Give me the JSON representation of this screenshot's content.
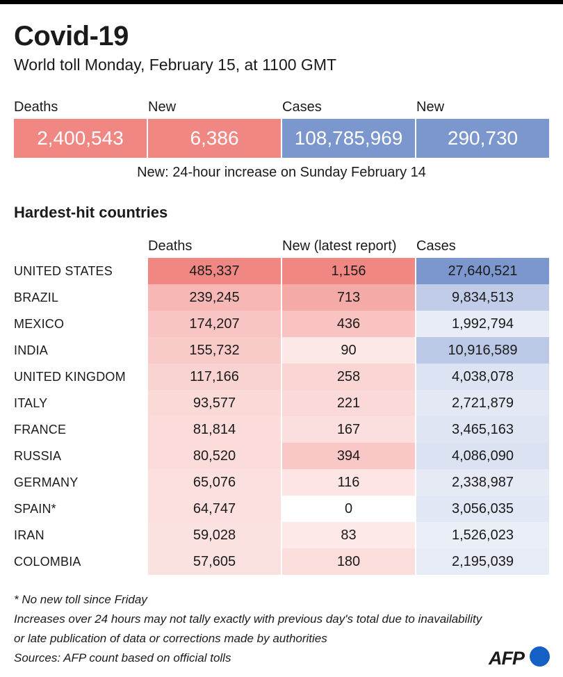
{
  "header": {
    "title": "Covid-19",
    "subtitle": "World toll Monday, February 15, at 1100 GMT"
  },
  "summary": {
    "deaths_label": "Deaths",
    "new_deaths_label": "New",
    "cases_label": "Cases",
    "new_cases_label": "New",
    "deaths_value": "2,400,543",
    "new_deaths_value": "6,386",
    "cases_value": "108,785,969",
    "new_cases_value": "290,730",
    "note": "New: 24-hour increase on Sunday February 14"
  },
  "colors": {
    "deaths_accent": "#f08783",
    "cases_accent": "#7c96ce"
  },
  "chart_data": {
    "type": "table",
    "title": "Hardest-hit countries",
    "columns": [
      "Deaths",
      "New (latest report)",
      "Cases"
    ],
    "rows": [
      {
        "country": "UNITED STATES",
        "deaths": 485337,
        "new": 1156,
        "cases": 27640521,
        "deaths_label": "485,337",
        "new_label": "1,156",
        "cases_label": "27,640,521"
      },
      {
        "country": "BRAZIL",
        "deaths": 239245,
        "new": 713,
        "cases": 9834513,
        "deaths_label": "239,245",
        "new_label": "713",
        "cases_label": "9,834,513"
      },
      {
        "country": "MEXICO",
        "deaths": 174207,
        "new": 436,
        "cases": 1992794,
        "deaths_label": "174,207",
        "new_label": "436",
        "cases_label": "1,992,794"
      },
      {
        "country": "INDIA",
        "deaths": 155732,
        "new": 90,
        "cases": 10916589,
        "deaths_label": "155,732",
        "new_label": "90",
        "cases_label": "10,916,589"
      },
      {
        "country": "UNITED KINGDOM",
        "deaths": 117166,
        "new": 258,
        "cases": 4038078,
        "deaths_label": "117,166",
        "new_label": "258",
        "cases_label": "4,038,078"
      },
      {
        "country": "ITALY",
        "deaths": 93577,
        "new": 221,
        "cases": 2721879,
        "deaths_label": "93,577",
        "new_label": "221",
        "cases_label": "2,721,879"
      },
      {
        "country": "FRANCE",
        "deaths": 81814,
        "new": 167,
        "cases": 3465163,
        "deaths_label": "81,814",
        "new_label": "167",
        "cases_label": "3,465,163"
      },
      {
        "country": "RUSSIA",
        "deaths": 80520,
        "new": 394,
        "cases": 4086090,
        "deaths_label": "80,520",
        "new_label": "394",
        "cases_label": "4,086,090"
      },
      {
        "country": "GERMANY",
        "deaths": 65076,
        "new": 116,
        "cases": 2338987,
        "deaths_label": "65,076",
        "new_label": "116",
        "cases_label": "2,338,987"
      },
      {
        "country": "SPAIN*",
        "deaths": 64747,
        "new": 0,
        "cases": 3056035,
        "deaths_label": "64,747",
        "new_label": "0",
        "cases_label": "3,056,035"
      },
      {
        "country": "IRAN",
        "deaths": 59028,
        "new": 83,
        "cases": 1526023,
        "deaths_label": "59,028",
        "new_label": "83",
        "cases_label": "1,526,023"
      },
      {
        "country": "COLOMBIA",
        "deaths": 57605,
        "new": 180,
        "cases": 2195039,
        "deaths_label": "57,605",
        "new_label": "180",
        "cases_label": "2,195,039"
      }
    ]
  },
  "footnotes": {
    "spain": "* No new toll since Friday",
    "line1": "Increases over 24 hours may not tally exactly with previous day's total due to inavailability",
    "line2": "or late publication of data or corrections made by authorities",
    "sources": "Sources: AFP count based on official tolls"
  },
  "logo": {
    "text": "AFP"
  }
}
